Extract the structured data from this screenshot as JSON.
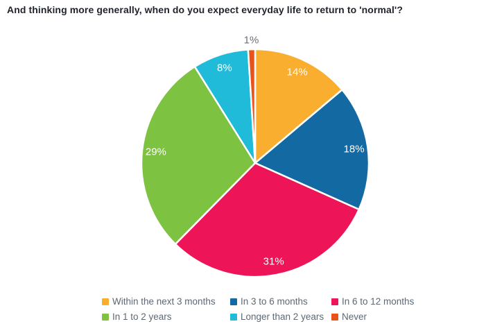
{
  "chart_data": {
    "type": "pie",
    "title": "And thinking more generally, when do you expect everyday life to return to 'normal'?",
    "start_angle_deg": 0,
    "direction": "clockwise",
    "legend_position": "bottom",
    "slices": [
      {
        "label": "Within the next 3 months",
        "value": 14,
        "display": "14%",
        "color": "#F9AE2F",
        "label_placement": "inside"
      },
      {
        "label": "In 3 to 6 months",
        "value": 18,
        "display": "18%",
        "color": "#136AA3",
        "label_placement": "inside"
      },
      {
        "label": "In 6 to 12 months",
        "value": 31,
        "display": "31%",
        "color": "#ED1557",
        "label_placement": "inside"
      },
      {
        "label": "In 1 to 2 years",
        "value": 29,
        "display": "29%",
        "color": "#7EC242",
        "label_placement": "inside"
      },
      {
        "label": "Longer than 2 years",
        "value": 8,
        "display": "8%",
        "color": "#1FBBD9",
        "label_placement": "inside"
      },
      {
        "label": "Never",
        "value": 1,
        "display": "1%",
        "color": "#E8531C",
        "label_placement": "outside"
      }
    ],
    "colors": {
      "inside_label": "#FFFFFF",
      "outside_label": "#6C7077",
      "legend_text": "#5C6873",
      "slice_border": "#FFFFFF",
      "title_text": "#1F232B"
    }
  }
}
